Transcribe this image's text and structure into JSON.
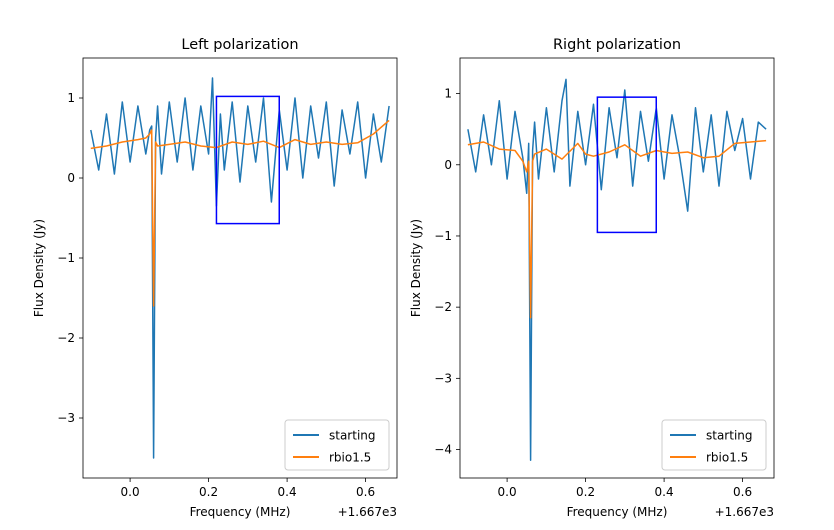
{
  "chart_data": [
    {
      "type": "line",
      "title": "Left polarization",
      "xlabel": "Frequency (MHz)",
      "ylabel": "Flux Density (Jy)",
      "x_offset_label": "+1.667e3",
      "xlim": [
        -0.12,
        0.68
      ],
      "ylim": [
        -3.75,
        1.5
      ],
      "xticks": [
        0.0,
        0.2,
        0.4,
        0.6
      ],
      "xtick_labels": [
        "0.0",
        "0.2",
        "0.4",
        "0.6"
      ],
      "yticks": [
        1,
        0,
        -1,
        -2,
        -3
      ],
      "ytick_labels": [
        "1",
        "0",
        "−1",
        "−2",
        "−3"
      ],
      "legend": "lower-right",
      "series": [
        {
          "name": "starting",
          "color": "#1f77b4",
          "x": [
            -0.1,
            -0.08,
            -0.06,
            -0.04,
            -0.02,
            0.0,
            0.02,
            0.04,
            0.05,
            0.055,
            0.06,
            0.065,
            0.07,
            0.08,
            0.1,
            0.12,
            0.14,
            0.16,
            0.18,
            0.2,
            0.21,
            0.22,
            0.23,
            0.24,
            0.26,
            0.28,
            0.3,
            0.32,
            0.34,
            0.36,
            0.38,
            0.4,
            0.42,
            0.44,
            0.46,
            0.48,
            0.5,
            0.52,
            0.54,
            0.56,
            0.58,
            0.6,
            0.62,
            0.64,
            0.66
          ],
          "y": [
            0.6,
            0.1,
            0.8,
            0.05,
            0.95,
            0.2,
            0.9,
            0.3,
            0.6,
            0.65,
            -3.5,
            0.5,
            0.9,
            0.05,
            0.95,
            0.2,
            1.0,
            0.1,
            0.9,
            0.3,
            1.25,
            -0.35,
            0.8,
            0.1,
            0.95,
            -0.05,
            0.9,
            0.2,
            1.0,
            -0.3,
            0.85,
            0.1,
            1.0,
            0.0,
            0.9,
            0.25,
            0.95,
            -0.1,
            0.85,
            0.3,
            0.95,
            0.0,
            0.8,
            0.2,
            0.9
          ]
        },
        {
          "name": "rbio1.5",
          "color": "#ff7f0e",
          "x": [
            -0.1,
            -0.06,
            -0.02,
            0.02,
            0.04,
            0.05,
            0.055,
            0.06,
            0.065,
            0.07,
            0.1,
            0.14,
            0.18,
            0.22,
            0.26,
            0.3,
            0.34,
            0.38,
            0.42,
            0.46,
            0.5,
            0.54,
            0.58,
            0.62,
            0.66
          ],
          "y": [
            0.37,
            0.4,
            0.45,
            0.48,
            0.5,
            0.55,
            0.6,
            -1.6,
            0.45,
            0.4,
            0.42,
            0.45,
            0.4,
            0.38,
            0.45,
            0.42,
            0.46,
            0.38,
            0.48,
            0.42,
            0.45,
            0.42,
            0.44,
            0.55,
            0.72
          ]
        }
      ],
      "annotation_box": {
        "color": "#0000ff",
        "x": [
          0.22,
          0.38
        ],
        "y": [
          -0.57,
          1.02
        ]
      },
      "legend_entries": [
        "starting",
        "rbio1.5"
      ]
    },
    {
      "type": "line",
      "title": "Right polarization",
      "xlabel": "Frequency (MHz)",
      "ylabel": "Flux Density (Jy)",
      "x_offset_label": "+1.667e3",
      "xlim": [
        -0.12,
        0.68
      ],
      "ylim": [
        -4.4,
        1.5
      ],
      "xticks": [
        0.0,
        0.2,
        0.4,
        0.6
      ],
      "xtick_labels": [
        "0.0",
        "0.2",
        "0.4",
        "0.6"
      ],
      "yticks": [
        1,
        0,
        -1,
        -2,
        -3,
        -4
      ],
      "ytick_labels": [
        "1",
        "0",
        "−1",
        "−2",
        "−3",
        "−4"
      ],
      "legend": "lower-right",
      "series": [
        {
          "name": "starting",
          "color": "#1f77b4",
          "x": [
            -0.1,
            -0.08,
            -0.06,
            -0.04,
            -0.02,
            0.0,
            0.02,
            0.04,
            0.05,
            0.055,
            0.06,
            0.065,
            0.07,
            0.08,
            0.1,
            0.12,
            0.14,
            0.15,
            0.16,
            0.18,
            0.2,
            0.22,
            0.24,
            0.26,
            0.28,
            0.3,
            0.32,
            0.34,
            0.36,
            0.38,
            0.4,
            0.42,
            0.44,
            0.46,
            0.48,
            0.5,
            0.52,
            0.54,
            0.56,
            0.58,
            0.6,
            0.62,
            0.64,
            0.66
          ],
          "y": [
            0.5,
            -0.1,
            0.7,
            0.0,
            0.9,
            -0.2,
            0.75,
            0.1,
            -0.4,
            0.3,
            -4.15,
            0.2,
            0.6,
            -0.2,
            0.8,
            -0.1,
            0.9,
            1.2,
            -0.3,
            0.75,
            0.0,
            0.85,
            -0.35,
            0.8,
            0.1,
            1.05,
            -0.3,
            0.75,
            0.05,
            0.8,
            -0.2,
            0.7,
            0.1,
            -0.65,
            0.8,
            -0.1,
            0.7,
            -0.3,
            0.75,
            0.2,
            0.65,
            -0.2,
            0.6,
            0.5
          ]
        },
        {
          "name": "rbio1.5",
          "color": "#ff7f0e",
          "x": [
            -0.1,
            -0.06,
            -0.02,
            0.02,
            0.04,
            0.05,
            0.055,
            0.06,
            0.065,
            0.07,
            0.1,
            0.14,
            0.18,
            0.2,
            0.22,
            0.26,
            0.3,
            0.34,
            0.38,
            0.42,
            0.46,
            0.5,
            0.54,
            0.58,
            0.62,
            0.66
          ],
          "y": [
            0.28,
            0.32,
            0.22,
            0.2,
            0.05,
            -0.1,
            0.05,
            -2.15,
            0.05,
            0.15,
            0.22,
            0.08,
            0.3,
            0.15,
            0.12,
            0.18,
            0.28,
            0.12,
            0.2,
            0.16,
            0.18,
            0.1,
            0.12,
            0.3,
            0.32,
            0.34
          ]
        }
      ],
      "annotation_box": {
        "color": "#0000ff",
        "x": [
          0.23,
          0.38
        ],
        "y": [
          -0.95,
          0.95
        ]
      },
      "legend_entries": [
        "starting",
        "rbio1.5"
      ]
    }
  ]
}
